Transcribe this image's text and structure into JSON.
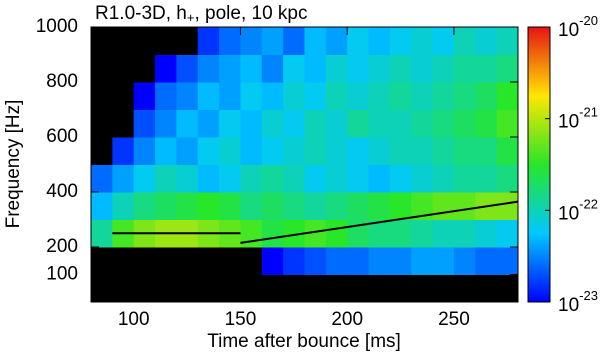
{
  "chart_data": {
    "type": "heatmap",
    "title": [
      "R1.0-3D, h",
      "+",
      ", pole, 10 kpc"
    ],
    "x_label": "Time after bounce [ms]",
    "y_label": "Frequency [Hz]",
    "x": [
      85,
      95,
      105,
      115,
      125,
      135,
      145,
      155,
      165,
      175,
      185,
      195,
      205,
      215,
      225,
      235,
      245,
      255,
      265,
      275
    ],
    "y": [
      50,
      150,
      250,
      350,
      450,
      550,
      650,
      750,
      850,
      950
    ],
    "z": [
      [
        -24,
        -24,
        -24,
        -24,
        -24,
        -24,
        -24,
        -24,
        -24,
        -24,
        -24,
        -24,
        -24,
        -24,
        -24,
        -23.5,
        -23.2,
        -23.2,
        -23.4,
        -23.5
      ],
      [
        -24,
        -24,
        -24,
        -24,
        -24,
        -24,
        -24,
        -23.3,
        -23,
        -22.8,
        -22.7,
        -22.6,
        -22.6,
        -22.5,
        -22.5,
        -22.4,
        -22.4,
        -22.5,
        -22.6,
        -22.6
      ],
      [
        -21.9,
        -21.4,
        -21.2,
        -21.1,
        -21.1,
        -21.2,
        -21.3,
        -21.4,
        -21.6,
        -21.5,
        -21.4,
        -21.5,
        -21.7,
        -21.8,
        -21.8,
        -21.9,
        -22,
        -22,
        -22.1,
        -22.2
      ],
      [
        -22.3,
        -22,
        -21.8,
        -21.7,
        -21.6,
        -21.5,
        -21.6,
        -21.8,
        -21.7,
        -21.8,
        -21.9,
        -21.8,
        -21.7,
        -21.6,
        -21.5,
        -21.4,
        -21.3,
        -21.3,
        -21.2,
        -21.2
      ],
      [
        -22.6,
        -22.4,
        -22.2,
        -22,
        -22.1,
        -22.3,
        -22.2,
        -22,
        -21.9,
        -22,
        -22.2,
        -22.1,
        -22.2,
        -22.3,
        -22.2,
        -22.1,
        -22,
        -21.9,
        -21.9,
        -21.8
      ],
      [
        -24,
        -22.8,
        -22.5,
        -22.3,
        -22.4,
        -22.2,
        -22.1,
        -22.3,
        -22.2,
        -22.1,
        -22,
        -22.1,
        -22.2,
        -22.1,
        -22,
        -22,
        -21.9,
        -21.8,
        -21.8,
        -21.6
      ],
      [
        -24,
        -23.2,
        -22.7,
        -22.5,
        -22.3,
        -22.4,
        -22.2,
        -22.3,
        -22.1,
        -22.2,
        -22,
        -22.1,
        -21.9,
        -22,
        -22,
        -21.9,
        -21.8,
        -21.7,
        -21.6,
        -21.4
      ],
      [
        -24,
        -24,
        -23,
        -22.6,
        -22.5,
        -22.3,
        -22.4,
        -22.2,
        -22.3,
        -22.1,
        -22.2,
        -22,
        -22.1,
        -22,
        -21.9,
        -22,
        -21.9,
        -21.8,
        -21.7,
        -21.5
      ],
      [
        -24,
        -24,
        -24,
        -23,
        -22.7,
        -22.5,
        -22.4,
        -22.3,
        -22.5,
        -22.2,
        -22.3,
        -22.1,
        -22.2,
        -22.1,
        -22,
        -22.1,
        -22,
        -21.9,
        -21.9,
        -21.8
      ],
      [
        -24,
        -24,
        -24,
        -24,
        -23.2,
        -22.8,
        -22.6,
        -22.5,
        -22.4,
        -22.6,
        -22.3,
        -22.4,
        -22.2,
        -22.3,
        -22.2,
        -22.1,
        -22.2,
        -22,
        -22.1,
        -22
      ]
    ],
    "lines": [
      {
        "color": "#000000",
        "x": [
          90,
          150
        ],
        "values": [
          250,
          250
        ]
      },
      {
        "color": "#000000",
        "x": [
          150,
          280
        ],
        "values": [
          215,
          365
        ]
      }
    ],
    "xlim": [
      80,
      280
    ],
    "xticks": [
      100,
      150,
      200,
      250
    ],
    "ylim": [
      0,
      1000
    ],
    "yticks": [
      100,
      200,
      400,
      600,
      800,
      1000
    ],
    "clim": [
      -23,
      -20
    ],
    "cticks": [
      {
        "value": -20,
        "label": "10",
        "exponent": "-20"
      },
      {
        "value": -21,
        "label": "10",
        "exponent": "-21"
      },
      {
        "value": -22,
        "label": "10",
        "exponent": "-22"
      },
      {
        "value": -23,
        "label": "10",
        "exponent": "-23"
      }
    ]
  }
}
